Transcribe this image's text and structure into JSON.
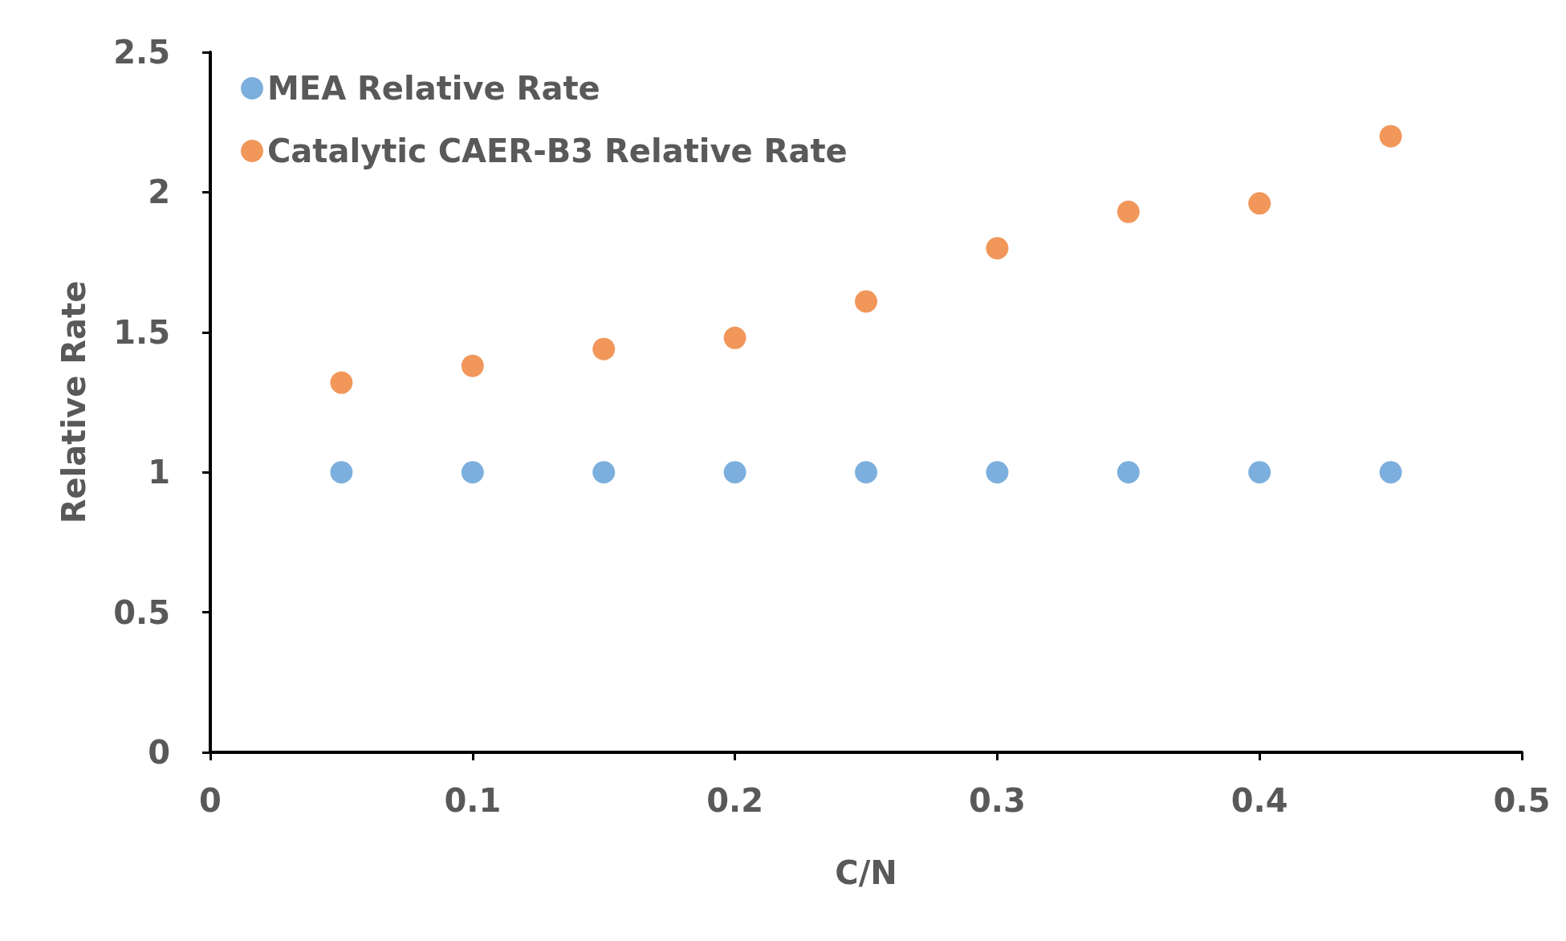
{
  "chart_data": {
    "type": "scatter",
    "xlabel": "C/N",
    "ylabel": "Relative Rate",
    "x": [
      0.05,
      0.1,
      0.15,
      0.2,
      0.25,
      0.3,
      0.35,
      0.4,
      0.45
    ],
    "series": [
      {
        "name": "MEA Relative Rate",
        "color": "#5b9bd5",
        "values": [
          1,
          1,
          1,
          1,
          1,
          1,
          1,
          1,
          1
        ]
      },
      {
        "name": "Catalytic CAER-B3 Relative Rate",
        "color": "#ed7d31",
        "values": [
          1.32,
          1.38,
          1.44,
          1.48,
          1.61,
          1.8,
          1.93,
          1.96,
          2.2
        ]
      }
    ],
    "xlim": [
      0,
      0.5
    ],
    "xticks": [
      0,
      0.1,
      0.2,
      0.3,
      0.4,
      0.5
    ],
    "ylim": [
      0,
      2.5
    ],
    "yticks": [
      0,
      0.5,
      1,
      1.5,
      2,
      2.5
    ],
    "grid": false,
    "legend": "top left",
    "marker": "circle"
  }
}
